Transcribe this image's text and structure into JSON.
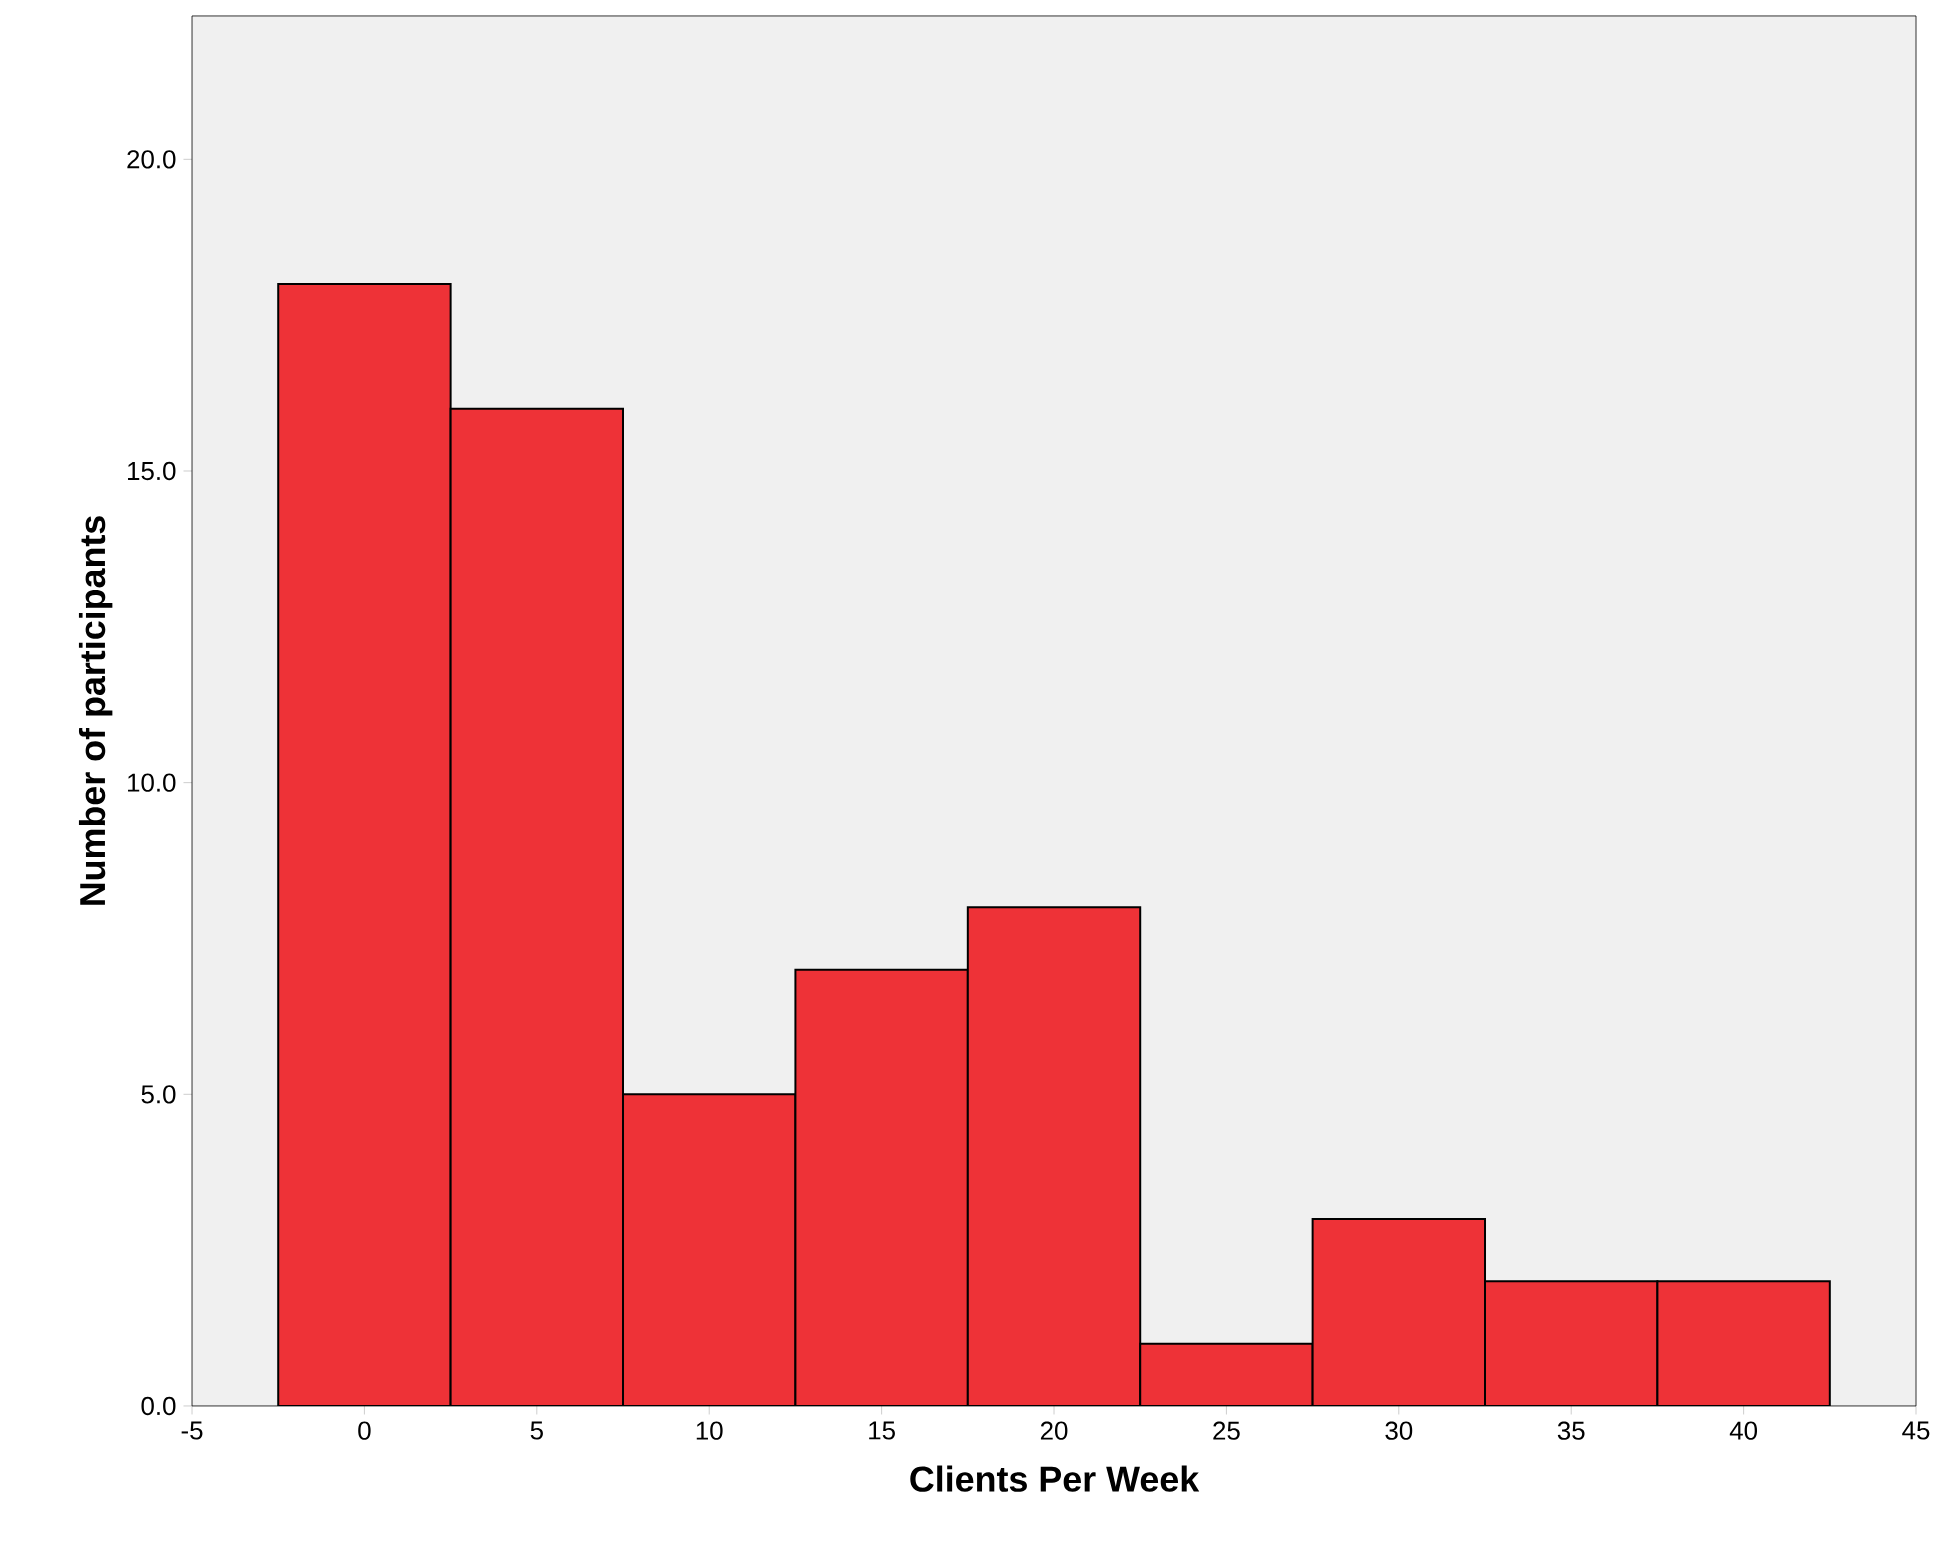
{
  "chart_data": {
    "type": "histogram",
    "xlabel": "Clients Per Week",
    "ylabel": "Number of participants",
    "bins": [
      -2.5,
      2.5,
      7.5,
      12.5,
      17.5,
      22.5,
      27.5,
      32.5,
      37.5,
      42.5
    ],
    "values": [
      18,
      16,
      5,
      7,
      8,
      1,
      3,
      2,
      2
    ],
    "color": "#ee3237",
    "xlim": [
      -5,
      45
    ],
    "xticks": [
      -5,
      0,
      5,
      10,
      15,
      20,
      25,
      30,
      35,
      40,
      45
    ],
    "ylim": [
      0,
      22.3
    ],
    "yticks": [
      {
        "value": 0,
        "label": "0.0"
      },
      {
        "value": 5,
        "label": "5.0"
      },
      {
        "value": 10,
        "label": "10.0"
      },
      {
        "value": 15,
        "label": "15.0"
      },
      {
        "value": 20,
        "label": "20.0"
      }
    ],
    "grid": false
  }
}
